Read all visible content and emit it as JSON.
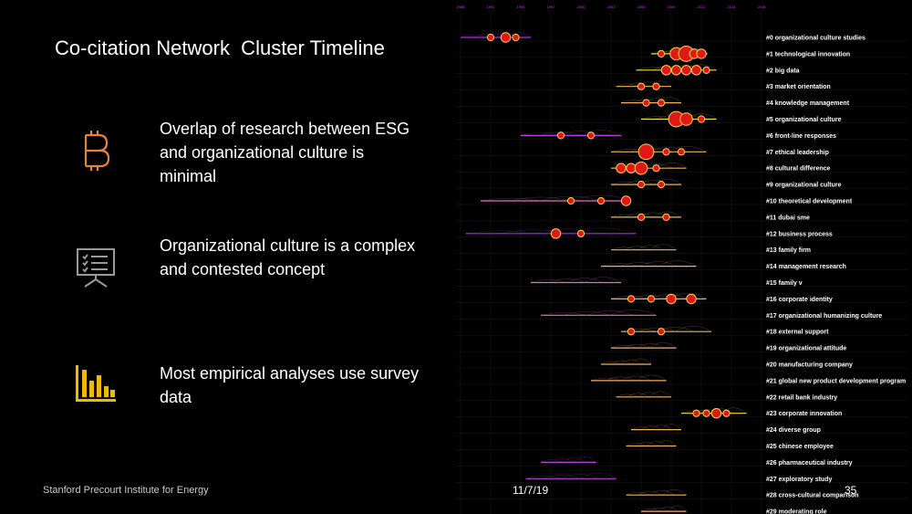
{
  "slide": {
    "title": "Co-citation Network  Cluster Timeline",
    "bullets": [
      {
        "icon": "bitcoin-icon",
        "color": "#e8823a",
        "text": "Overlap of research between ESG and organizational culture is minimal"
      },
      {
        "icon": "presentation-board-icon",
        "color": "#9a9a9a",
        "text": "Organizational culture is a complex and contested concept"
      },
      {
        "icon": "bar-chart-icon",
        "color": "#f2b807",
        "text": "Most empirical analyses use survey data"
      }
    ],
    "footer_left": "Stanford Precourt Institute for Energy",
    "footer_date": "11/7/19",
    "page_number": "35"
  },
  "chart_data": {
    "type": "scatter",
    "title": "",
    "x_ticks": [
      "1988",
      "1991",
      "1994",
      "1997",
      "2000",
      "2003",
      "2006",
      "2009",
      "2012",
      "2015",
      "2018"
    ],
    "clusters": [
      {
        "label": "#0 organizational culture studies",
        "start": 1988.0,
        "end": 1995.0,
        "color": "#b030e0",
        "nodes": [
          [
            1991,
            1
          ],
          [
            1992.5,
            2
          ],
          [
            1993.5,
            1
          ]
        ]
      },
      {
        "label": "#1 technological innovation",
        "start": 2007.0,
        "end": 2012.6,
        "color": "#f0e040",
        "nodes": [
          [
            2008,
            1
          ],
          [
            2009.5,
            3
          ],
          [
            2010.5,
            4
          ],
          [
            2011.3,
            2
          ],
          [
            2012,
            2
          ]
        ]
      },
      {
        "label": "#2 big data",
        "start": 2005.5,
        "end": 2013.5,
        "color": "#f0e040",
        "nodes": [
          [
            2008.5,
            2
          ],
          [
            2009.5,
            2
          ],
          [
            2010.5,
            2
          ],
          [
            2011.5,
            2
          ],
          [
            2012.5,
            1
          ]
        ]
      },
      {
        "label": "#3 market orientation",
        "start": 2003.5,
        "end": 2009.0,
        "color": "#f0b060",
        "nodes": [
          [
            2006,
            1
          ],
          [
            2007.5,
            1
          ]
        ]
      },
      {
        "label": "#4 knowledge management",
        "start": 2004.0,
        "end": 2010.0,
        "color": "#f0b060",
        "nodes": [
          [
            2006.5,
            1
          ],
          [
            2008,
            1
          ]
        ]
      },
      {
        "label": "#5 organizational culture",
        "start": 2006.0,
        "end": 2013.5,
        "color": "#f0e040",
        "nodes": [
          [
            2009.5,
            4
          ],
          [
            2010.5,
            3
          ],
          [
            2012,
            1
          ]
        ]
      },
      {
        "label": "#6 front-line responses",
        "start": 1994.0,
        "end": 2004.0,
        "color": "#c040e0",
        "nodes": [
          [
            1998,
            1
          ],
          [
            2001,
            1
          ]
        ]
      },
      {
        "label": "#7 ethical leadership",
        "start": 2003.0,
        "end": 2012.5,
        "color": "#f0b060",
        "nodes": [
          [
            2006.5,
            4
          ],
          [
            2008.5,
            1
          ],
          [
            2010,
            1
          ]
        ]
      },
      {
        "label": "#8 cultural difference",
        "start": 2003.0,
        "end": 2010.5,
        "color": "#f0b060",
        "nodes": [
          [
            2004,
            2
          ],
          [
            2005,
            2
          ],
          [
            2006,
            3
          ],
          [
            2007.5,
            1
          ]
        ]
      },
      {
        "label": "#9 organizational culture",
        "start": 2003.0,
        "end": 2010.0,
        "color": "#f0b060",
        "nodes": [
          [
            2006,
            1
          ],
          [
            2008,
            1
          ]
        ]
      },
      {
        "label": "#10 theoretical development",
        "start": 1990.0,
        "end": 2005.0,
        "color": "#e070c0",
        "nodes": [
          [
            1999,
            1
          ],
          [
            2002,
            1
          ],
          [
            2004.5,
            2
          ]
        ]
      },
      {
        "label": "#11 dubai sme",
        "start": 2003.0,
        "end": 2010.0,
        "color": "#f0b060",
        "nodes": [
          [
            2006,
            1
          ],
          [
            2008.5,
            1
          ]
        ]
      },
      {
        "label": "#12 business process",
        "start": 1988.5,
        "end": 2005.5,
        "color": "#a030e0",
        "nodes": [
          [
            1997.5,
            2
          ],
          [
            2000,
            1
          ]
        ]
      },
      {
        "label": "#13 family firm",
        "start": 2003.0,
        "end": 2009.5,
        "color": "#f0b060",
        "nodes": []
      },
      {
        "label": "#14 management research",
        "start": 2002.0,
        "end": 2011.5,
        "color": "#f0b060",
        "nodes": []
      },
      {
        "label": "#15 family v",
        "start": 1995.0,
        "end": 2004.0,
        "color": "#e070c0",
        "nodes": []
      },
      {
        "label": "#16 corporate identity",
        "start": 2003.0,
        "end": 2012.5,
        "color": "#f0b060",
        "nodes": [
          [
            2005,
            1
          ],
          [
            2007,
            1
          ],
          [
            2009,
            2
          ],
          [
            2011,
            2
          ]
        ]
      },
      {
        "label": "#17 organizational humanizing culture",
        "start": 1996.0,
        "end": 2007.5,
        "color": "#e070c0",
        "nodes": []
      },
      {
        "label": "#18 external support",
        "start": 2004.0,
        "end": 2013.0,
        "color": "#f0b060",
        "nodes": [
          [
            2005,
            1
          ],
          [
            2008,
            1
          ]
        ]
      },
      {
        "label": "#19 organizational attitude",
        "start": 2003.0,
        "end": 2009.5,
        "color": "#f0b060",
        "nodes": []
      },
      {
        "label": "#20 manufacturing company",
        "start": 2002.0,
        "end": 2007.0,
        "color": "#f0b060",
        "nodes": []
      },
      {
        "label": "#21 global new product development program",
        "start": 2001.0,
        "end": 2008.5,
        "color": "#f0b060",
        "nodes": []
      },
      {
        "label": "#22 retail bank industry",
        "start": 2003.5,
        "end": 2009.0,
        "color": "#f0b060",
        "nodes": []
      },
      {
        "label": "#23 corporate innovation",
        "start": 2010.0,
        "end": 2016.5,
        "color": "#f0e040",
        "nodes": [
          [
            2011.5,
            1
          ],
          [
            2012.5,
            1
          ],
          [
            2013.5,
            2
          ],
          [
            2014.5,
            1
          ]
        ]
      },
      {
        "label": "#24 diverse group",
        "start": 2005.0,
        "end": 2010.0,
        "color": "#f0b060",
        "nodes": []
      },
      {
        "label": "#25 chinese employee",
        "start": 2004.5,
        "end": 2009.5,
        "color": "#f0b060",
        "nodes": []
      },
      {
        "label": "#26 pharmaceutical industry",
        "start": 1996.0,
        "end": 2001.5,
        "color": "#c040e0",
        "nodes": []
      },
      {
        "label": "#27 exploratory study",
        "start": 1994.5,
        "end": 2003.5,
        "color": "#c040e0",
        "nodes": []
      },
      {
        "label": "#28 cross-cultural comparison",
        "start": 2004.5,
        "end": 2010.5,
        "color": "#f0b060",
        "nodes": []
      },
      {
        "label": "#29 moderating role",
        "start": 2006.0,
        "end": 2010.5,
        "color": "#f0b060",
        "nodes": []
      }
    ]
  }
}
